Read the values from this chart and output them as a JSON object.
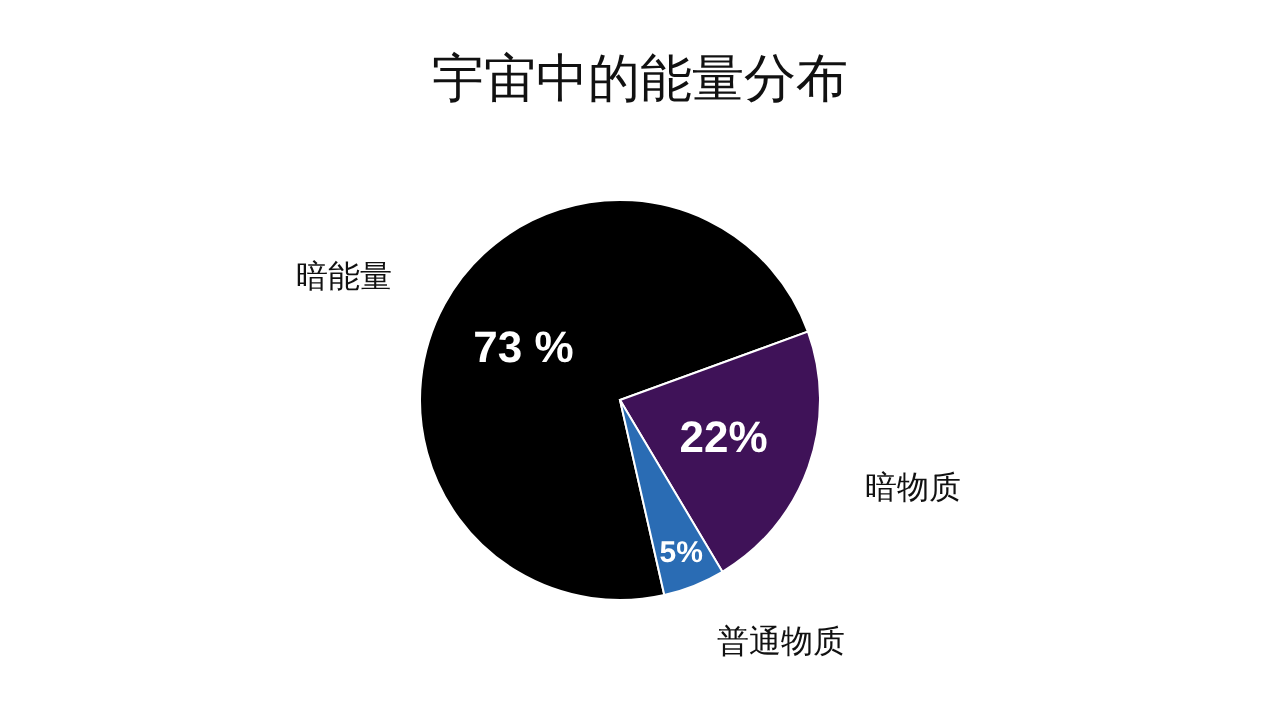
{
  "chart_data": {
    "type": "pie",
    "title": "宇宙中的能量分布",
    "categories": [
      "暗能量",
      "暗物质",
      "普通物质"
    ],
    "values": [
      73,
      22,
      5
    ],
    "colors": [
      "#000000",
      "#3f1258",
      "#2a6cb4"
    ],
    "value_labels": [
      "73 %",
      "22%",
      "5%"
    ]
  }
}
